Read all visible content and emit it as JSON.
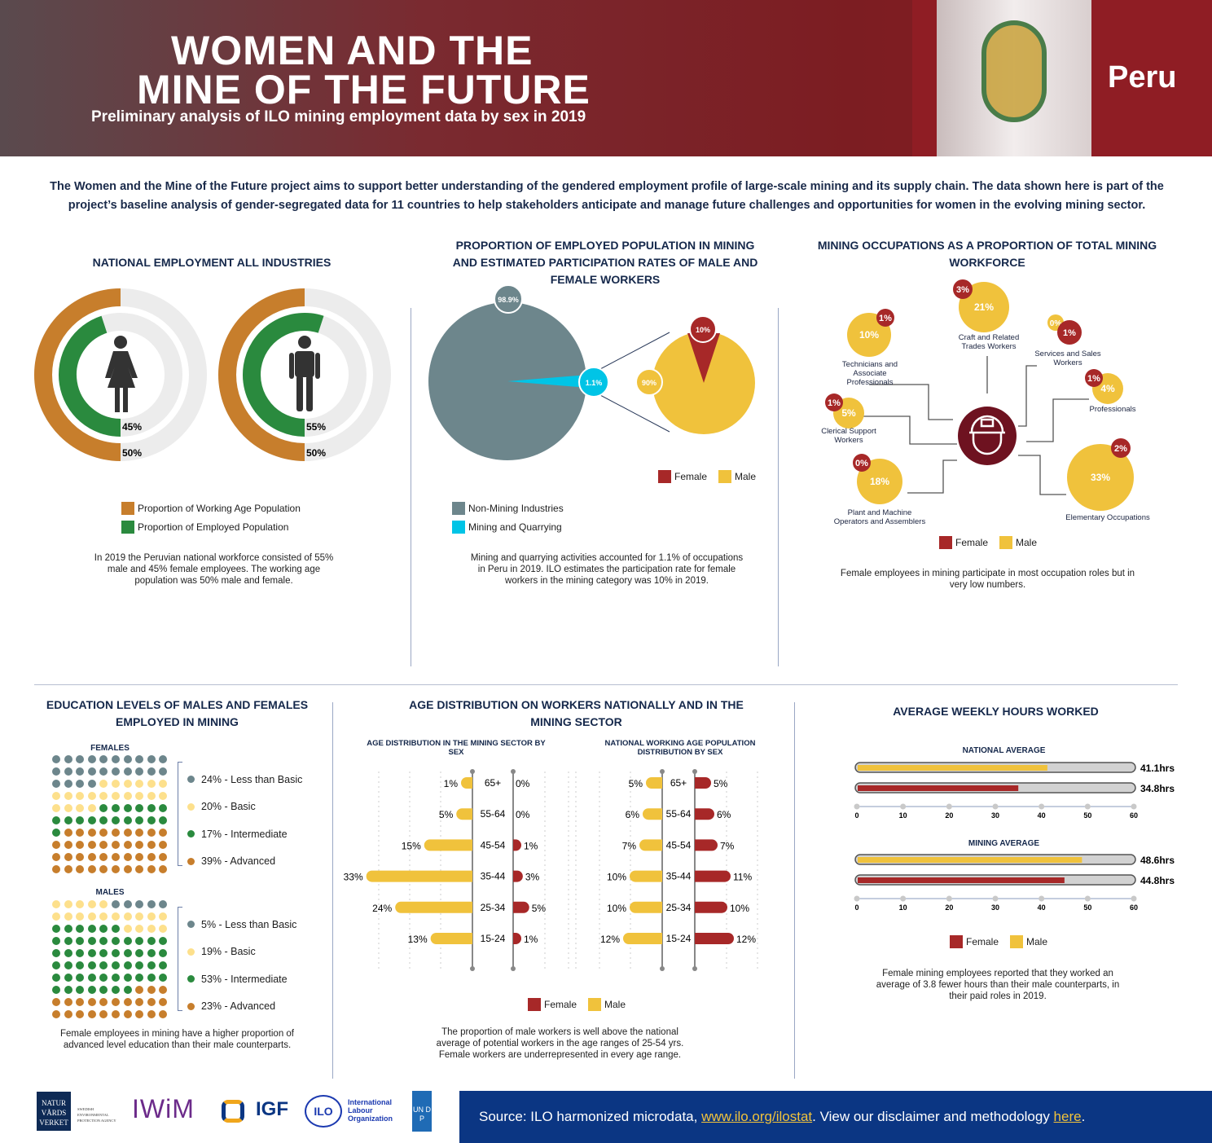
{
  "header": {
    "title_line1": "WOMEN AND THE",
    "title_line2": "MINE OF THE FUTURE",
    "subtitle": "Preliminary analysis of ILO mining employment data by sex in 2019",
    "country": "Peru"
  },
  "intro": "The Women and the Mine of the Future project aims to support better understanding of the gendered employment profile of large-scale mining and its supply chain. The data shown here is part of the project’s baseline analysis of gender-segregated data for 11 countries to help stakeholders anticipate and manage future challenges and opportunities for women in the evolving mining sector.",
  "colors": {
    "female": "#a72828",
    "male": "#f0c23c",
    "working_age": "#c77e2c",
    "employed": "#2a8a3e",
    "non_mining": "#6d868c",
    "mining": "#00c4e6",
    "navy": "#15284b"
  },
  "national": {
    "title": "NATIONAL EMPLOYMENT ALL INDUSTRIES",
    "female": {
      "employed": "45%",
      "working_age": "50%",
      "employed_value": 45,
      "working_age_value": 50
    },
    "male": {
      "employed": "55%",
      "working_age": "50%",
      "employed_value": 55,
      "working_age_value": 50
    },
    "legend": [
      "Proportion of Working Age Population",
      "Proportion of Employed Population"
    ],
    "caption": "In 2019 the Peruvian national workforce consisted of 55% male and 45% female employees. The working age population was 50% male and female."
  },
  "proportion": {
    "title": "PROPORTION OF EMPLOYED POPULATION IN MINING AND ESTIMATED PARTICIPATION RATES OF MALE AND FEMALE WORKERS",
    "non_mining": "98.9%",
    "mining": "1.1%",
    "female": "10%",
    "male": "90%",
    "non_mining_value": 98.9,
    "mining_value": 1.1,
    "female_value": 10,
    "legend_sex": [
      "Female",
      "Male"
    ],
    "legend_ind": [
      "Non-Mining Industries",
      "Mining and Quarrying"
    ],
    "caption": "Mining and quarrying activities accounted for 1.1% of occupations in Peru in 2019. ILO estimates the participation rate for female workers in the mining category was 10% in 2019."
  },
  "occupations": {
    "title": "MINING OCCUPATIONS AS A PROPORTION OF TOTAL MINING WORKFORCE",
    "items": [
      {
        "name": "Technicians and Associate Professionals",
        "male": "10%",
        "female": "1%"
      },
      {
        "name": "Craft and Related Trades Workers",
        "male": "21%",
        "female": "3%"
      },
      {
        "name": "Services and Sales Workers",
        "male": "0%",
        "female": "1%"
      },
      {
        "name": "Professionals",
        "male": "4%",
        "female": "1%"
      },
      {
        "name": "Clerical Support Workers",
        "male": "5%",
        "female": "1%"
      },
      {
        "name": "Plant and Machine Operators and Assemblers",
        "male": "18%",
        "female": "0%"
      },
      {
        "name": "Elementary Occupations",
        "male": "33%",
        "female": "2%"
      }
    ],
    "legend": [
      "Female",
      "Male"
    ],
    "caption": "Female employees in mining participate in most occupation roles but in very low numbers."
  },
  "education": {
    "title": "EDUCATION LEVELS OF MALES AND FEMALES EMPLOYED IN MINING",
    "females_label": "FEMALES",
    "males_label": "MALES",
    "females": [
      {
        "label": "24% - Less than Basic",
        "value": 24
      },
      {
        "label": "20% - Basic",
        "value": 20
      },
      {
        "label": "17% - Intermediate",
        "value": 17
      },
      {
        "label": "39% - Advanced",
        "value": 39
      }
    ],
    "males": [
      {
        "label": "5% - Less than Basic",
        "value": 5
      },
      {
        "label": "19% - Basic",
        "value": 19
      },
      {
        "label": "53% - Intermediate",
        "value": 53
      },
      {
        "label": "23% - Advanced",
        "value": 23
      }
    ],
    "caption": "Female employees in mining have a higher proportion of advanced level education than their male counterparts."
  },
  "age": {
    "title": "AGE DISTRIBUTION ON WORKERS NATIONALLY AND IN THE MINING SECTOR",
    "legend": [
      "Female",
      "Male"
    ],
    "caption": "The proportion of male workers is well above the national average of potential workers in the age ranges of 25-54 yrs. Female workers are underrepresented in every age range."
  },
  "hours": {
    "title": "AVERAGE WEEKLY HOURS WORKED",
    "legend": [
      "Female",
      "Male"
    ],
    "caption": "Female mining employees reported that they worked an average of 3.8 fewer hours than their male counterparts, in their paid roles in 2019."
  },
  "chart_data": [
    {
      "type": "bar",
      "title": "AGE DISTRIBUTION IN THE MINING SECTOR BY SEX",
      "categories": [
        "65+",
        "55-64",
        "45-54",
        "35-44",
        "25-34",
        "15-24"
      ],
      "series": [
        {
          "name": "Male",
          "values": [
            1,
            5,
            15,
            33,
            24,
            13
          ]
        },
        {
          "name": "Female",
          "values": [
            0,
            0,
            1,
            3,
            5,
            1
          ]
        }
      ]
    },
    {
      "type": "bar",
      "title": "NATIONAL WORKING AGE POPULATION DISTRIBUTION BY SEX",
      "categories": [
        "65+",
        "55-64",
        "45-54",
        "35-44",
        "25-34",
        "15-24"
      ],
      "series": [
        {
          "name": "Male",
          "values": [
            5,
            6,
            7,
            10,
            10,
            12
          ]
        },
        {
          "name": "Female",
          "values": [
            5,
            6,
            7,
            11,
            10,
            12
          ]
        }
      ]
    },
    {
      "type": "bar",
      "title": "NATIONAL AVERAGE",
      "ticks": [
        "0",
        "10",
        "20",
        "30",
        "40",
        "50",
        "60"
      ],
      "xlim": [
        0,
        60
      ],
      "series": [
        {
          "name": "Male",
          "value": 41.1,
          "label": "41.1hrs"
        },
        {
          "name": "Female",
          "value": 34.8,
          "label": "34.8hrs"
        }
      ]
    },
    {
      "type": "bar",
      "title": "MINING AVERAGE",
      "ticks": [
        "0",
        "10",
        "20",
        "30",
        "40",
        "50",
        "60"
      ],
      "xlim": [
        0,
        60
      ],
      "series": [
        {
          "name": "Male",
          "value": 48.6,
          "label": "48.6hrs"
        },
        {
          "name": "Female",
          "value": 44.8,
          "label": "44.8hrs"
        }
      ]
    }
  ],
  "footer": {
    "logos": [
      "NATUR VÅRDS VERKET",
      "SWEDISH ENVIRONMENTAL PROTECTION AGENCY",
      "IWiM",
      "IGF",
      "ILO",
      "International Labour Organization",
      "UN DP"
    ],
    "source_prefix": "Source: ILO harmonized microdata, ",
    "source_link": "www.ilo.org/ilostat",
    "source_mid": ". View our disclaimer and methodology ",
    "source_link2": "here",
    "source_end": "."
  }
}
